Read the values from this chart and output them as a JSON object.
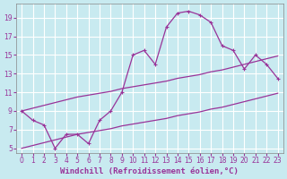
{
  "title": "",
  "xlabel": "Windchill (Refroidissement éolien,°C)",
  "ylabel": "",
  "bg_color": "#c8eaf0",
  "line_color": "#993399",
  "grid_color": "#ffffff",
  "x_data": [
    0,
    1,
    2,
    3,
    4,
    5,
    6,
    7,
    8,
    9,
    10,
    11,
    12,
    13,
    14,
    15,
    16,
    17,
    18,
    19,
    20,
    21,
    22,
    23
  ],
  "y_main": [
    9,
    8,
    7.5,
    5,
    6.5,
    6.5,
    5.5,
    8,
    9,
    11,
    15,
    15.5,
    14,
    18,
    19.5,
    19.7,
    19.3,
    18.5,
    16,
    15.5,
    13.5,
    15,
    14,
    12.5
  ],
  "y_line1": [
    9,
    9.3,
    9.6,
    9.9,
    10.2,
    10.5,
    10.7,
    10.9,
    11.1,
    11.4,
    11.6,
    11.8,
    12.0,
    12.2,
    12.5,
    12.7,
    12.9,
    13.2,
    13.4,
    13.7,
    14.0,
    14.3,
    14.6,
    14.9
  ],
  "y_line2": [
    5,
    5.3,
    5.6,
    5.9,
    6.2,
    6.5,
    6.7,
    6.9,
    7.1,
    7.4,
    7.6,
    7.8,
    8.0,
    8.2,
    8.5,
    8.7,
    8.9,
    9.2,
    9.4,
    9.7,
    10.0,
    10.3,
    10.6,
    10.9
  ],
  "xlim": [
    -0.5,
    23.5
  ],
  "ylim": [
    4.5,
    20.5
  ],
  "yticks": [
    5,
    7,
    9,
    11,
    13,
    15,
    17,
    19
  ],
  "xticks": [
    0,
    1,
    2,
    3,
    4,
    5,
    6,
    7,
    8,
    9,
    10,
    11,
    12,
    13,
    14,
    15,
    16,
    17,
    18,
    19,
    20,
    21,
    22,
    23
  ],
  "tick_fontsize": 5.5,
  "xlabel_fontsize": 6.5,
  "spine_color": "#888888"
}
